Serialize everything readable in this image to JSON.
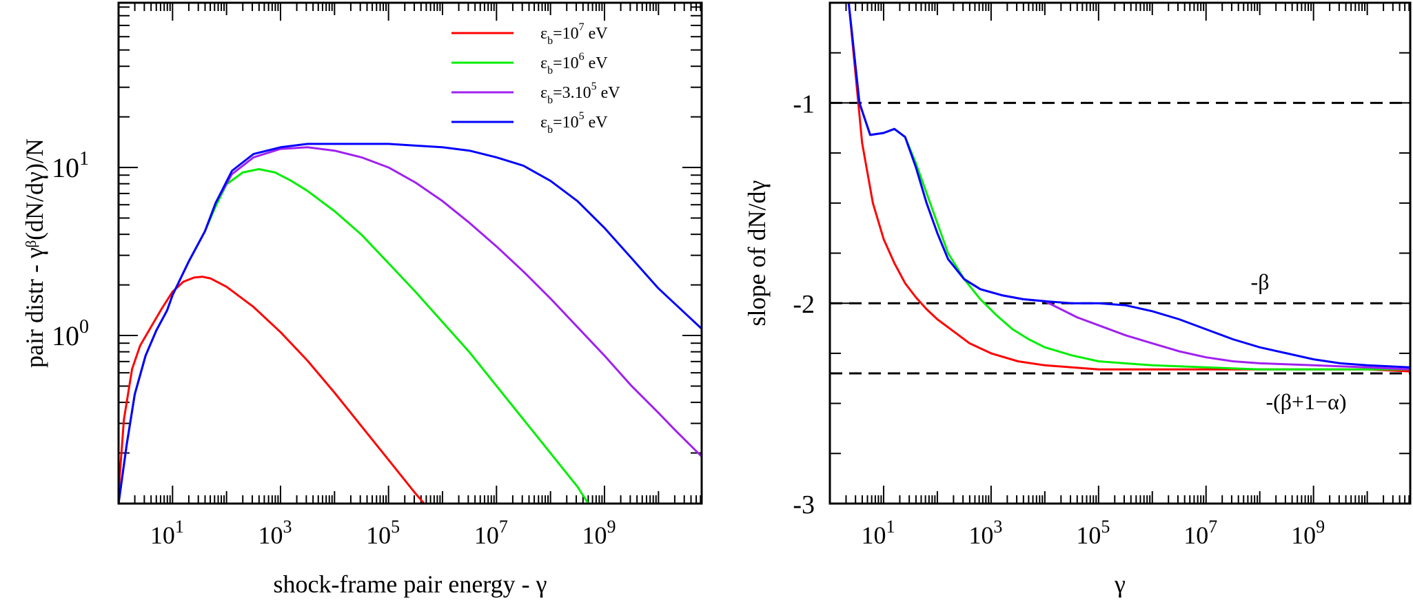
{
  "chart_data": [
    {
      "type": "line",
      "id": "left",
      "xlabel": "shock-frame pair energy  - γ",
      "ylabel": "pair distr - γᵝ(dN/dγ)/N",
      "xscale": "log",
      "yscale": "log",
      "xlim_log10": [
        0.0,
        10.8
      ],
      "ylim_log10": [
        -1.0,
        1.98
      ],
      "xticks": [
        {
          "base": "10",
          "exp": "1",
          "v": 1
        },
        {
          "base": "10",
          "exp": "3",
          "v": 3
        },
        {
          "base": "10",
          "exp": "5",
          "v": 5
        },
        {
          "base": "10",
          "exp": "7",
          "v": 7
        },
        {
          "base": "10",
          "exp": "9",
          "v": 9
        }
      ],
      "yticks": [
        {
          "base": "10",
          "exp": "0",
          "v": 0
        },
        {
          "base": "10",
          "exp": "1",
          "v": 1
        }
      ],
      "legend": {
        "placement": "top-center",
        "items": [
          {
            "sym": "ε",
            "sub": "b",
            "mid": "=10",
            "sup": "7",
            "tail": " eV",
            "color": "#ff0000"
          },
          {
            "sym": "ε",
            "sub": "b",
            "mid": "=10",
            "sup": "6",
            "tail": " eV",
            "color": "#00ee00"
          },
          {
            "sym": "ε",
            "sub": "b",
            "mid": "=3.10",
            "sup": "5",
            "tail": " eV",
            "color": "#a020f0"
          },
          {
            "sym": "ε",
            "sub": "b",
            "mid": "=10",
            "sup": "5",
            "tail": " eV",
            "color": "#0000ff"
          }
        ]
      },
      "series": [
        {
          "name": "εb=1e7 eV",
          "color": "#ff0000",
          "points": [
            [
              0.0,
              -0.93
            ],
            [
              0.1,
              -0.5
            ],
            [
              0.25,
              -0.2
            ],
            [
              0.4,
              -0.06
            ],
            [
              0.6,
              0.05
            ],
            [
              0.8,
              0.16
            ],
            [
              1.0,
              0.26
            ],
            [
              1.2,
              0.32
            ],
            [
              1.4,
              0.345
            ],
            [
              1.55,
              0.35
            ],
            [
              1.7,
              0.34
            ],
            [
              2.0,
              0.29
            ],
            [
              2.5,
              0.17
            ],
            [
              3.0,
              0.02
            ],
            [
              3.5,
              -0.15
            ],
            [
              4.0,
              -0.34
            ],
            [
              4.5,
              -0.54
            ],
            [
              5.0,
              -0.74
            ],
            [
              5.5,
              -0.94
            ],
            [
              5.66,
              -1.0
            ]
          ]
        },
        {
          "name": "εb=1e6 eV",
          "color": "#00ee00",
          "points": [
            [
              0.0,
              -1.0
            ],
            [
              0.15,
              -0.65
            ],
            [
              0.3,
              -0.35
            ],
            [
              0.5,
              -0.12
            ],
            [
              0.7,
              0.03
            ],
            [
              0.9,
              0.15
            ],
            [
              1.0,
              0.24
            ],
            [
              1.3,
              0.44
            ],
            [
              1.6,
              0.62
            ],
            [
              1.8,
              0.77
            ],
            [
              2.0,
              0.9
            ],
            [
              2.3,
              0.97
            ],
            [
              2.6,
              0.99
            ],
            [
              2.9,
              0.97
            ],
            [
              3.2,
              0.92
            ],
            [
              3.5,
              0.86
            ],
            [
              4.0,
              0.74
            ],
            [
              4.5,
              0.6
            ],
            [
              5.0,
              0.43
            ],
            [
              5.5,
              0.26
            ],
            [
              6.0,
              0.08
            ],
            [
              6.5,
              -0.1
            ],
            [
              7.0,
              -0.3
            ],
            [
              7.5,
              -0.5
            ],
            [
              8.0,
              -0.7
            ],
            [
              8.5,
              -0.9
            ],
            [
              8.7,
              -1.0
            ]
          ]
        },
        {
          "name": "εb=3e5 eV",
          "color": "#a020f0",
          "points": [
            [
              0.0,
              -1.0
            ],
            [
              0.15,
              -0.65
            ],
            [
              0.3,
              -0.35
            ],
            [
              0.5,
              -0.12
            ],
            [
              0.7,
              0.03
            ],
            [
              0.9,
              0.15
            ],
            [
              1.0,
              0.24
            ],
            [
              1.3,
              0.44
            ],
            [
              1.6,
              0.62
            ],
            [
              1.8,
              0.79
            ],
            [
              2.1,
              0.96
            ],
            [
              2.5,
              1.06
            ],
            [
              3.0,
              1.11
            ],
            [
              3.5,
              1.12
            ],
            [
              4.0,
              1.1
            ],
            [
              4.5,
              1.06
            ],
            [
              5.0,
              1.0
            ],
            [
              5.5,
              0.91
            ],
            [
              6.0,
              0.8
            ],
            [
              6.5,
              0.67
            ],
            [
              7.0,
              0.53
            ],
            [
              7.5,
              0.38
            ],
            [
              8.0,
              0.22
            ],
            [
              8.5,
              0.05
            ],
            [
              9.0,
              -0.12
            ],
            [
              9.5,
              -0.3
            ],
            [
              10.0,
              -0.46
            ],
            [
              10.3,
              -0.56
            ],
            [
              10.8,
              -0.72
            ]
          ]
        },
        {
          "name": "εb=1e5 eV",
          "color": "#0000ff",
          "points": [
            [
              0.0,
              -1.0
            ],
            [
              0.15,
              -0.65
            ],
            [
              0.3,
              -0.35
            ],
            [
              0.5,
              -0.12
            ],
            [
              0.7,
              0.03
            ],
            [
              0.9,
              0.15
            ],
            [
              1.0,
              0.24
            ],
            [
              1.3,
              0.44
            ],
            [
              1.6,
              0.62
            ],
            [
              1.8,
              0.79
            ],
            [
              2.1,
              0.98
            ],
            [
              2.5,
              1.08
            ],
            [
              3.0,
              1.12
            ],
            [
              3.5,
              1.14
            ],
            [
              4.0,
              1.14
            ],
            [
              4.5,
              1.14
            ],
            [
              5.0,
              1.14
            ],
            [
              5.5,
              1.13
            ],
            [
              6.0,
              1.12
            ],
            [
              6.5,
              1.1
            ],
            [
              7.0,
              1.06
            ],
            [
              7.5,
              1.01
            ],
            [
              8.0,
              0.92
            ],
            [
              8.5,
              0.8
            ],
            [
              9.0,
              0.64
            ],
            [
              9.5,
              0.46
            ],
            [
              10.0,
              0.28
            ],
            [
              10.5,
              0.13
            ],
            [
              10.8,
              0.04
            ]
          ]
        }
      ]
    },
    {
      "type": "line",
      "id": "right",
      "xlabel": "γ",
      "ylabel": "slope of dN/dγ",
      "xscale": "log",
      "xlim_log10": [
        0.0,
        10.8
      ],
      "ylim": [
        -3.0,
        -0.5
      ],
      "xticks": [
        {
          "base": "10",
          "exp": "1",
          "v": 1
        },
        {
          "base": "10",
          "exp": "3",
          "v": 3
        },
        {
          "base": "10",
          "exp": "5",
          "v": 5
        },
        {
          "base": "10",
          "exp": "7",
          "v": 7
        },
        {
          "base": "10",
          "exp": "9",
          "v": 9
        }
      ],
      "yticks": [
        {
          "label": "-1",
          "v": -1
        },
        {
          "label": "-2",
          "v": -2
        },
        {
          "label": "-3",
          "v": -3
        }
      ],
      "hlines": [
        {
          "y": -1.0,
          "label": ""
        },
        {
          "y": -2.0,
          "label": "-β"
        },
        {
          "y": -2.35,
          "label": "-(β+1−α)"
        }
      ],
      "series": [
        {
          "name": "εb=1e7 eV",
          "color": "#ff0000",
          "points": [
            [
              0.35,
              -0.5
            ],
            [
              0.6,
              -1.2
            ],
            [
              0.8,
              -1.5
            ],
            [
              1.0,
              -1.68
            ],
            [
              1.2,
              -1.8
            ],
            [
              1.4,
              -1.9
            ],
            [
              1.6,
              -1.97
            ],
            [
              1.8,
              -2.03
            ],
            [
              2.0,
              -2.08
            ],
            [
              2.3,
              -2.14
            ],
            [
              2.6,
              -2.2
            ],
            [
              3.0,
              -2.25
            ],
            [
              3.5,
              -2.29
            ],
            [
              4.0,
              -2.31
            ],
            [
              4.5,
              -2.32
            ],
            [
              5.0,
              -2.33
            ],
            [
              6.0,
              -2.33
            ],
            [
              7.0,
              -2.33
            ],
            [
              8.0,
              -2.33
            ],
            [
              9.0,
              -2.33
            ],
            [
              10.0,
              -2.33
            ],
            [
              10.8,
              -2.34
            ]
          ]
        },
        {
          "name": "εb=1e6 eV",
          "color": "#00ee00",
          "points": [
            [
              0.35,
              -0.5
            ],
            [
              0.55,
              -1.0
            ],
            [
              0.75,
              -1.16
            ],
            [
              1.0,
              -1.15
            ],
            [
              1.2,
              -1.13
            ],
            [
              1.4,
              -1.17
            ],
            [
              1.6,
              -1.3
            ],
            [
              1.8,
              -1.45
            ],
            [
              2.0,
              -1.6
            ],
            [
              2.2,
              -1.75
            ],
            [
              2.5,
              -1.88
            ],
            [
              2.8,
              -1.98
            ],
            [
              3.1,
              -2.06
            ],
            [
              3.4,
              -2.13
            ],
            [
              3.7,
              -2.18
            ],
            [
              4.0,
              -2.22
            ],
            [
              4.5,
              -2.26
            ],
            [
              5.0,
              -2.29
            ],
            [
              6.0,
              -2.31
            ],
            [
              7.0,
              -2.32
            ],
            [
              8.0,
              -2.33
            ],
            [
              9.0,
              -2.33
            ],
            [
              10.0,
              -2.33
            ],
            [
              10.8,
              -2.33
            ]
          ]
        },
        {
          "name": "εb=3e5 eV",
          "color": "#a020f0",
          "points": [
            [
              0.35,
              -0.5
            ],
            [
              0.55,
              -1.0
            ],
            [
              0.75,
              -1.16
            ],
            [
              1.0,
              -1.15
            ],
            [
              1.2,
              -1.13
            ],
            [
              1.4,
              -1.17
            ],
            [
              1.6,
              -1.32
            ],
            [
              1.8,
              -1.5
            ],
            [
              2.0,
              -1.65
            ],
            [
              2.2,
              -1.78
            ],
            [
              2.5,
              -1.88
            ],
            [
              2.8,
              -1.93
            ],
            [
              3.2,
              -1.96
            ],
            [
              3.6,
              -1.98
            ],
            [
              4.0,
              -1.99
            ],
            [
              4.3,
              -2.03
            ],
            [
              4.6,
              -2.07
            ],
            [
              5.0,
              -2.11
            ],
            [
              5.5,
              -2.16
            ],
            [
              6.0,
              -2.2
            ],
            [
              6.5,
              -2.24
            ],
            [
              7.0,
              -2.27
            ],
            [
              7.5,
              -2.29
            ],
            [
              8.0,
              -2.3
            ],
            [
              9.0,
              -2.31
            ],
            [
              10.0,
              -2.32
            ],
            [
              10.8,
              -2.33
            ]
          ]
        },
        {
          "name": "εb=1e5 eV",
          "color": "#0000ff",
          "points": [
            [
              0.35,
              -0.5
            ],
            [
              0.55,
              -1.0
            ],
            [
              0.75,
              -1.16
            ],
            [
              1.0,
              -1.15
            ],
            [
              1.2,
              -1.13
            ],
            [
              1.4,
              -1.17
            ],
            [
              1.6,
              -1.32
            ],
            [
              1.8,
              -1.5
            ],
            [
              2.0,
              -1.65
            ],
            [
              2.2,
              -1.78
            ],
            [
              2.5,
              -1.88
            ],
            [
              2.8,
              -1.93
            ],
            [
              3.2,
              -1.96
            ],
            [
              3.6,
              -1.98
            ],
            [
              4.0,
              -1.99
            ],
            [
              4.5,
              -2.0
            ],
            [
              5.0,
              -2.0
            ],
            [
              5.5,
              -2.01
            ],
            [
              6.0,
              -2.04
            ],
            [
              6.5,
              -2.08
            ],
            [
              7.0,
              -2.13
            ],
            [
              7.5,
              -2.18
            ],
            [
              8.0,
              -2.22
            ],
            [
              8.5,
              -2.25
            ],
            [
              9.0,
              -2.28
            ],
            [
              9.5,
              -2.3
            ],
            [
              10.0,
              -2.31
            ],
            [
              10.8,
              -2.32
            ]
          ]
        }
      ]
    }
  ]
}
